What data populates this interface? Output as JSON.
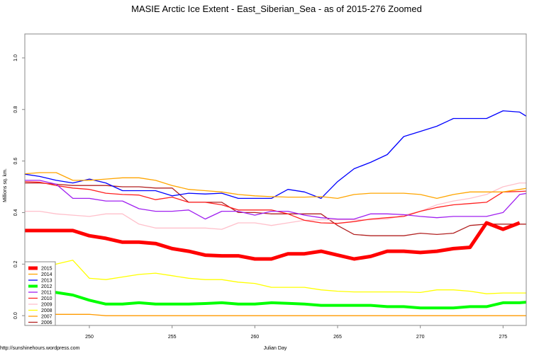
{
  "chart_data": {
    "type": "line",
    "title": "MASIE Arctic Ice Extent - East_Siberian_Sea - as of 2015-276 Zoomed",
    "xlabel": "Julian Day",
    "ylabel": "Millions sq. km.",
    "xlim": [
      246.1,
      276.4
    ],
    "ylim": [
      -0.038,
      1.093
    ],
    "xticks": [
      250,
      255,
      260,
      265,
      270,
      275
    ],
    "yticks": [
      "0.0",
      "0.2",
      "0.4",
      "0.6",
      "0.8",
      "1.0"
    ],
    "grid": false,
    "legend_position": "bottom-left",
    "x_start": 246,
    "series": [
      {
        "name": "2015",
        "color": "#ff0000",
        "width": 5,
        "values": [
          0.33,
          0.33,
          0.33,
          0.33,
          0.31,
          0.3,
          0.285,
          0.285,
          0.28,
          0.26,
          0.25,
          0.235,
          0.232,
          0.232,
          0.22,
          0.22,
          0.24,
          0.24,
          0.25,
          0.235,
          0.22,
          0.23,
          0.25,
          0.25,
          0.245,
          0.25,
          0.26,
          0.265,
          0.36,
          0.335,
          0.36
        ]
      },
      {
        "name": "2014",
        "color": "#ffa500",
        "width": 1.3,
        "values": [
          0.55,
          0.555,
          0.555,
          0.525,
          0.525,
          0.53,
          0.535,
          0.535,
          0.525,
          0.505,
          0.49,
          0.485,
          0.48,
          0.47,
          0.465,
          0.462,
          0.46,
          0.46,
          0.462,
          0.455,
          0.47,
          0.475,
          0.475,
          0.475,
          0.47,
          0.455,
          0.47,
          0.48,
          0.48,
          0.48,
          0.49,
          0.5
        ]
      },
      {
        "name": "2013",
        "color": "#0000ff",
        "width": 1.3,
        "values": [
          0.55,
          0.54,
          0.525,
          0.515,
          0.53,
          0.515,
          0.485,
          0.485,
          0.485,
          0.465,
          0.475,
          0.472,
          0.475,
          0.455,
          0.455,
          0.455,
          0.49,
          0.48,
          0.455,
          0.52,
          0.57,
          0.595,
          0.625,
          0.695,
          0.715,
          0.735,
          0.765,
          0.765,
          0.765,
          0.795,
          0.79,
          0.75
        ]
      },
      {
        "name": "2012",
        "color": "#00ff00",
        "width": 4,
        "values": [
          0.115,
          0.1,
          0.09,
          0.08,
          0.06,
          0.045,
          0.045,
          0.05,
          0.045,
          0.045,
          0.045,
          0.047,
          0.05,
          0.045,
          0.045,
          0.05,
          0.048,
          0.045,
          0.04,
          0.04,
          0.04,
          0.04,
          0.035,
          0.035,
          0.03,
          0.03,
          0.03,
          0.035,
          0.035,
          0.05,
          0.05,
          0.055
        ]
      },
      {
        "name": "2011",
        "color": "#a020f0",
        "width": 1.3,
        "values": [
          0.525,
          0.525,
          0.51,
          0.455,
          0.455,
          0.445,
          0.445,
          0.415,
          0.405,
          0.405,
          0.41,
          0.375,
          0.405,
          0.405,
          0.39,
          0.405,
          0.405,
          0.39,
          0.38,
          0.375,
          0.375,
          0.395,
          0.395,
          0.392,
          0.385,
          0.38,
          0.385,
          0.385,
          0.385,
          0.4,
          0.47,
          0.48
        ]
      },
      {
        "name": "2010",
        "color": "#ff2020",
        "width": 1.3,
        "values": [
          0.52,
          0.518,
          0.505,
          0.495,
          0.49,
          0.475,
          0.47,
          0.468,
          0.45,
          0.46,
          0.44,
          0.44,
          0.43,
          0.41,
          0.41,
          0.41,
          0.395,
          0.37,
          0.36,
          0.358,
          0.365,
          0.375,
          0.38,
          0.385,
          0.405,
          0.42,
          0.43,
          0.435,
          0.44,
          0.48,
          0.482,
          0.485
        ]
      },
      {
        "name": "2009",
        "color": "#ffc0cb",
        "width": 1.3,
        "values": [
          0.405,
          0.405,
          0.395,
          0.39,
          0.385,
          0.395,
          0.395,
          0.355,
          0.34,
          0.34,
          0.34,
          0.34,
          0.335,
          0.36,
          0.36,
          0.35,
          0.36,
          0.37,
          0.372,
          0.372,
          0.372,
          0.372,
          0.375,
          0.39,
          0.405,
          0.43,
          0.445,
          0.455,
          0.47,
          0.5,
          0.515,
          0.515
        ]
      },
      {
        "name": "2008",
        "color": "#ffff00",
        "width": 1.3,
        "values": [
          0.18,
          0.19,
          0.2,
          0.215,
          0.145,
          0.14,
          0.15,
          0.16,
          0.165,
          0.155,
          0.145,
          0.14,
          0.14,
          0.13,
          0.125,
          0.11,
          0.11,
          0.11,
          0.1,
          0.095,
          0.092,
          0.092,
          0.092,
          0.092,
          0.09,
          0.1,
          0.1,
          0.095,
          0.085,
          0.088,
          0.088,
          0.088
        ]
      },
      {
        "name": "2007",
        "color": "#ff9a00",
        "width": 1.3,
        "values": [
          0.005,
          0.005,
          0.005,
          0.005,
          0.005,
          0,
          0,
          0,
          0,
          0,
          0,
          0,
          0,
          0,
          0,
          0,
          0,
          0,
          0,
          0,
          0,
          0,
          0,
          0,
          0,
          0,
          0,
          0,
          0,
          0,
          0,
          0
        ]
      },
      {
        "name": "2006",
        "color": "#b22222",
        "width": 1.3,
        "values": [
          0.515,
          0.515,
          0.51,
          0.505,
          0.505,
          0.505,
          0.5,
          0.5,
          0.495,
          0.495,
          0.44,
          0.44,
          0.44,
          0.4,
          0.4,
          0.395,
          0.395,
          0.395,
          0.395,
          0.35,
          0.315,
          0.31,
          0.31,
          0.31,
          0.32,
          0.315,
          0.32,
          0.35,
          0.355,
          0.355,
          0.355,
          0.355
        ]
      }
    ]
  },
  "credit": "http://sunshinehours.wordpress.com"
}
